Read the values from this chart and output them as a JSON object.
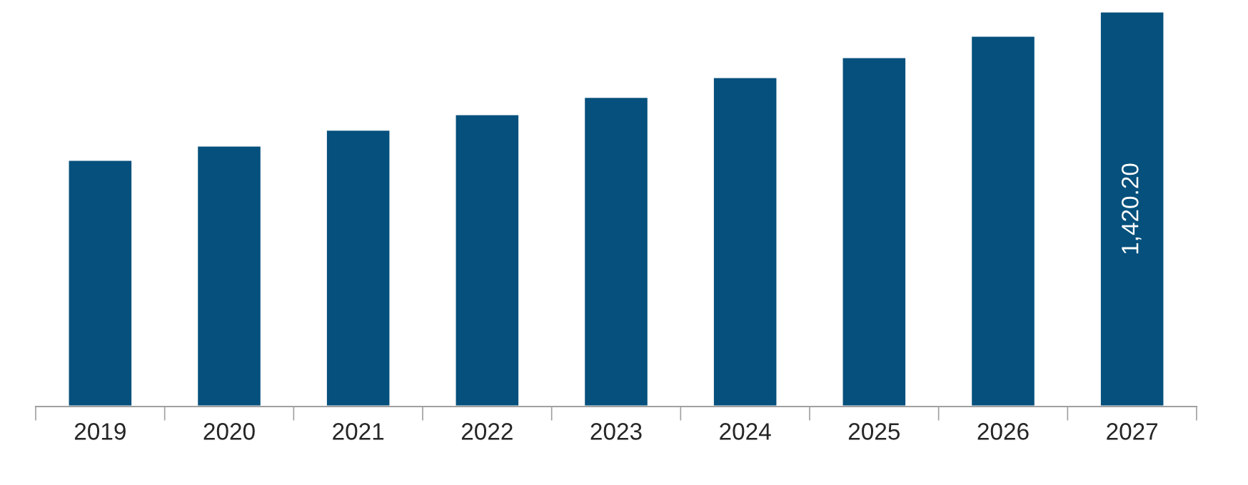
{
  "chart_data": {
    "type": "bar",
    "categories": [
      "2019",
      "2020",
      "2021",
      "2022",
      "2023",
      "2024",
      "2025",
      "2026",
      "2027"
    ],
    "values": [
      887,
      938,
      995,
      1051,
      1113,
      1184,
      1256,
      1333,
      1420.2
    ],
    "color": "#05507c",
    "value_labels": [
      null,
      null,
      null,
      null,
      null,
      null,
      null,
      null,
      "1,420.20"
    ],
    "grid": false,
    "legend": false
  }
}
